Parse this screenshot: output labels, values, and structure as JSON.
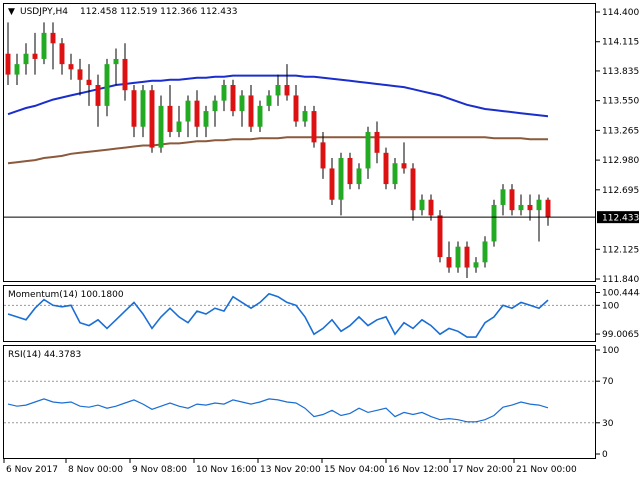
{
  "chart_data": [
    {
      "type": "candlestick",
      "symbol_header": "USDJPY,H4",
      "ohlc_header": "112.458 112.519 112.366 112.433",
      "price_label": "112.433",
      "price_value": 112.433,
      "ylim": [
        111.84,
        114.4
      ],
      "y_ticks": [
        "114.400",
        "114.115",
        "113.835",
        "113.550",
        "113.265",
        "112.980",
        "112.695",
        "112.125",
        "111.840"
      ],
      "y_tick_values": [
        114.4,
        114.115,
        113.835,
        113.55,
        113.265,
        112.98,
        112.695,
        112.125,
        111.84
      ],
      "x_ticks": [
        "6 Nov 2017",
        "8 Nov 00:00",
        "9 Nov 08:00",
        "10 Nov 16:00",
        "13 Nov 20:00",
        "15 Nov 04:00",
        "16 Nov 12:00",
        "17 Nov 20:00",
        "21 Nov 00:00"
      ],
      "colors": {
        "up": "#22aa22",
        "down": "#dd1111",
        "ma_fast": "#1a2ecc",
        "ma_slow": "#8b5a3c"
      },
      "candles": [
        [
          114.0,
          114.3,
          113.7,
          113.8
        ],
        [
          113.8,
          114.0,
          113.7,
          113.9
        ],
        [
          113.9,
          114.1,
          113.8,
          114.0
        ],
        [
          114.0,
          114.2,
          113.8,
          113.95
        ],
        [
          113.95,
          114.3,
          113.9,
          114.2
        ],
        [
          114.2,
          114.3,
          113.85,
          114.1
        ],
        [
          114.1,
          114.15,
          113.8,
          113.9
        ],
        [
          113.9,
          114.0,
          113.75,
          113.85
        ],
        [
          113.85,
          113.95,
          113.6,
          113.75
        ],
        [
          113.75,
          113.9,
          113.5,
          113.7
        ],
        [
          113.7,
          113.8,
          113.3,
          113.5
        ],
        [
          113.5,
          113.95,
          113.4,
          113.9
        ],
        [
          113.9,
          114.05,
          113.7,
          113.95
        ],
        [
          113.95,
          114.1,
          113.55,
          113.65
        ],
        [
          113.65,
          113.7,
          113.2,
          113.3
        ],
        [
          113.3,
          113.7,
          113.2,
          113.65
        ],
        [
          113.65,
          113.7,
          113.05,
          113.1
        ],
        [
          113.1,
          113.6,
          113.05,
          113.5
        ],
        [
          113.5,
          113.7,
          113.2,
          113.25
        ],
        [
          113.25,
          113.5,
          113.2,
          113.35
        ],
        [
          113.35,
          113.6,
          113.2,
          113.55
        ],
        [
          113.55,
          113.65,
          113.2,
          113.3
        ],
        [
          113.3,
          113.5,
          113.2,
          113.45
        ],
        [
          113.45,
          113.6,
          113.3,
          113.55
        ],
        [
          113.55,
          113.75,
          113.45,
          113.7
        ],
        [
          113.7,
          113.75,
          113.4,
          113.45
        ],
        [
          113.45,
          113.65,
          113.3,
          113.6
        ],
        [
          113.6,
          113.7,
          113.25,
          113.3
        ],
        [
          113.3,
          113.55,
          113.25,
          113.5
        ],
        [
          113.5,
          113.65,
          113.45,
          113.6
        ],
        [
          113.6,
          113.8,
          113.5,
          113.7
        ],
        [
          113.7,
          113.9,
          113.55,
          113.6
        ],
        [
          113.6,
          113.7,
          113.3,
          113.35
        ],
        [
          113.35,
          113.5,
          113.3,
          113.45
        ],
        [
          113.45,
          113.5,
          113.1,
          113.15
        ],
        [
          113.15,
          113.25,
          112.8,
          112.9
        ],
        [
          112.9,
          113.0,
          112.55,
          112.6
        ],
        [
          112.6,
          113.05,
          112.45,
          113.0
        ],
        [
          113.0,
          113.05,
          112.7,
          112.75
        ],
        [
          112.75,
          112.95,
          112.7,
          112.9
        ],
        [
          112.9,
          113.3,
          112.8,
          113.25
        ],
        [
          113.25,
          113.35,
          112.95,
          113.05
        ],
        [
          113.05,
          113.1,
          112.7,
          112.75
        ],
        [
          112.75,
          113.0,
          112.7,
          112.95
        ],
        [
          112.95,
          113.15,
          112.85,
          112.9
        ],
        [
          112.9,
          112.95,
          112.4,
          112.5
        ],
        [
          112.5,
          112.65,
          112.45,
          112.6
        ],
        [
          112.6,
          112.65,
          112.4,
          112.45
        ],
        [
          112.45,
          112.5,
          112.0,
          112.05
        ],
        [
          112.05,
          112.2,
          111.9,
          111.95
        ],
        [
          111.95,
          112.2,
          111.9,
          112.15
        ],
        [
          112.15,
          112.2,
          111.85,
          111.95
        ],
        [
          111.95,
          112.05,
          111.9,
          112.0
        ],
        [
          112.0,
          112.25,
          111.95,
          112.2
        ],
        [
          112.2,
          112.6,
          112.15,
          112.55
        ],
        [
          112.55,
          112.75,
          112.45,
          112.7
        ],
        [
          112.7,
          112.75,
          112.45,
          112.5
        ],
        [
          112.5,
          112.65,
          112.45,
          112.55
        ],
        [
          112.55,
          112.65,
          112.4,
          112.5
        ],
        [
          112.5,
          112.65,
          112.2,
          112.6
        ],
        [
          112.6,
          112.62,
          112.35,
          112.43
        ]
      ],
      "ma_fast": [
        113.42,
        113.45,
        113.48,
        113.5,
        113.53,
        113.56,
        113.58,
        113.6,
        113.62,
        113.64,
        113.66,
        113.68,
        113.7,
        113.71,
        113.72,
        113.73,
        113.74,
        113.74,
        113.75,
        113.75,
        113.76,
        113.77,
        113.77,
        113.78,
        113.78,
        113.79,
        113.79,
        113.79,
        113.79,
        113.79,
        113.79,
        113.79,
        113.79,
        113.78,
        113.78,
        113.77,
        113.76,
        113.75,
        113.74,
        113.73,
        113.72,
        113.71,
        113.7,
        113.69,
        113.68,
        113.66,
        113.64,
        113.62,
        113.6,
        113.57,
        113.54,
        113.51,
        113.49,
        113.47,
        113.46,
        113.45,
        113.44,
        113.43,
        113.42,
        113.41,
        113.4
      ],
      "ma_slow": [
        112.95,
        112.96,
        112.97,
        112.98,
        113.0,
        113.01,
        113.02,
        113.04,
        113.05,
        113.06,
        113.07,
        113.08,
        113.09,
        113.1,
        113.11,
        113.12,
        113.12,
        113.13,
        113.14,
        113.14,
        113.15,
        113.16,
        113.16,
        113.17,
        113.17,
        113.18,
        113.18,
        113.18,
        113.19,
        113.19,
        113.19,
        113.2,
        113.2,
        113.2,
        113.2,
        113.2,
        113.2,
        113.2,
        113.2,
        113.2,
        113.2,
        113.2,
        113.2,
        113.2,
        113.2,
        113.2,
        113.2,
        113.2,
        113.2,
        113.2,
        113.2,
        113.2,
        113.2,
        113.2,
        113.19,
        113.19,
        113.19,
        113.19,
        113.18,
        113.18,
        113.18
      ]
    },
    {
      "type": "line",
      "title": "Momentum(14) 100.1800",
      "ylim": [
        98.8,
        100.6
      ],
      "y_ticks": [
        "100.4444",
        "100",
        "99.0065"
      ],
      "y_tick_values": [
        100.4444,
        100,
        99.0065
      ],
      "reference_line": 100,
      "color": "#1a6ed4",
      "values": [
        99.7,
        99.6,
        99.5,
        99.9,
        100.2,
        100.0,
        99.95,
        100.0,
        99.4,
        99.3,
        99.5,
        99.2,
        99.5,
        99.8,
        100.1,
        99.7,
        99.2,
        99.6,
        99.9,
        99.6,
        99.4,
        99.8,
        99.7,
        99.9,
        99.8,
        100.3,
        100.1,
        99.9,
        100.1,
        100.4,
        100.3,
        100.1,
        100.0,
        99.6,
        99.0,
        99.2,
        99.5,
        99.1,
        99.3,
        99.6,
        99.3,
        99.5,
        99.6,
        99.0,
        99.4,
        99.2,
        99.5,
        99.3,
        99.0,
        99.2,
        99.1,
        98.9,
        98.9,
        99.4,
        99.6,
        100.0,
        99.9,
        100.1,
        100.0,
        99.9,
        100.18
      ]
    },
    {
      "type": "line",
      "title": "RSI(14) 44.3783",
      "ylim": [
        0,
        100
      ],
      "y_ticks": [
        "100",
        "70",
        "30",
        "0"
      ],
      "y_tick_values": [
        100,
        70,
        30,
        0
      ],
      "reference_lines": [
        70,
        30
      ],
      "color": "#1a6ed4",
      "values": [
        48,
        46,
        47,
        50,
        53,
        50,
        49,
        50,
        46,
        45,
        47,
        44,
        46,
        49,
        52,
        48,
        43,
        46,
        49,
        46,
        44,
        48,
        47,
        49,
        48,
        52,
        50,
        48,
        50,
        53,
        52,
        50,
        49,
        44,
        36,
        38,
        42,
        37,
        39,
        44,
        40,
        42,
        44,
        36,
        40,
        38,
        40,
        36,
        33,
        34,
        33,
        31,
        31,
        33,
        37,
        45,
        47,
        50,
        48,
        47,
        44.38
      ]
    }
  ]
}
